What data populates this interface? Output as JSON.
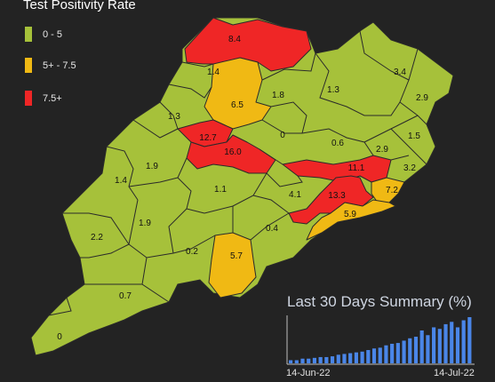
{
  "legend": {
    "title": "Test Positivity Rate",
    "items": [
      {
        "label": "0 - 5",
        "color": "#a6c13a"
      },
      {
        "label": "5+ - 7.5",
        "color": "#f0b914"
      },
      {
        "label": "7.5+",
        "color": "#ef2626"
      }
    ]
  },
  "districts": [
    {
      "value": "8.4",
      "level": "red"
    },
    {
      "value": "1.4",
      "level": "green"
    },
    {
      "value": "6.5",
      "level": "yellow"
    },
    {
      "value": "1.8",
      "level": "green"
    },
    {
      "value": "1.3",
      "level": "green"
    },
    {
      "value": "3.4",
      "level": "green"
    },
    {
      "value": "2.9",
      "level": "green"
    },
    {
      "value": "1.3",
      "level": "green"
    },
    {
      "value": "12.7",
      "level": "red"
    },
    {
      "value": "16.0",
      "level": "red"
    },
    {
      "value": "0",
      "level": "green"
    },
    {
      "value": "0.6",
      "level": "green"
    },
    {
      "value": "2.9",
      "level": "green"
    },
    {
      "value": "1.5",
      "level": "green"
    },
    {
      "value": "1.9",
      "level": "green"
    },
    {
      "value": "11.1",
      "level": "red"
    },
    {
      "value": "3.2",
      "level": "green"
    },
    {
      "value": "1.4",
      "level": "green"
    },
    {
      "value": "1.1",
      "level": "green"
    },
    {
      "value": "4.1",
      "level": "green"
    },
    {
      "value": "13.3",
      "level": "red"
    },
    {
      "value": "7.2",
      "level": "yellow"
    },
    {
      "value": "5.9",
      "level": "yellow"
    },
    {
      "value": "1.9",
      "level": "green"
    },
    {
      "value": "0.4",
      "level": "green"
    },
    {
      "value": "2.2",
      "level": "green"
    },
    {
      "value": "0.2",
      "level": "green"
    },
    {
      "value": "5.7",
      "level": "yellow"
    },
    {
      "value": "0.7",
      "level": "green"
    },
    {
      "value": "0",
      "level": "green"
    }
  ],
  "summary": {
    "title": "Last 30 Days Summary (%)",
    "start_date": "14-Jun-22",
    "end_date": "14-Jul-22",
    "bar_color": "#4a86e8",
    "values": [
      0.4,
      0.4,
      0.6,
      0.6,
      0.7,
      0.8,
      0.8,
      0.9,
      1.1,
      1.2,
      1.3,
      1.4,
      1.5,
      1.7,
      1.9,
      2.0,
      2.3,
      2.5,
      2.6,
      2.9,
      3.2,
      3.4,
      4.2,
      3.6,
      4.6,
      4.4,
      5.0,
      5.3,
      4.6,
      5.5,
      5.9
    ]
  },
  "colors": {
    "green": "#a6c13a",
    "yellow": "#f0b914",
    "red": "#ef2626"
  }
}
